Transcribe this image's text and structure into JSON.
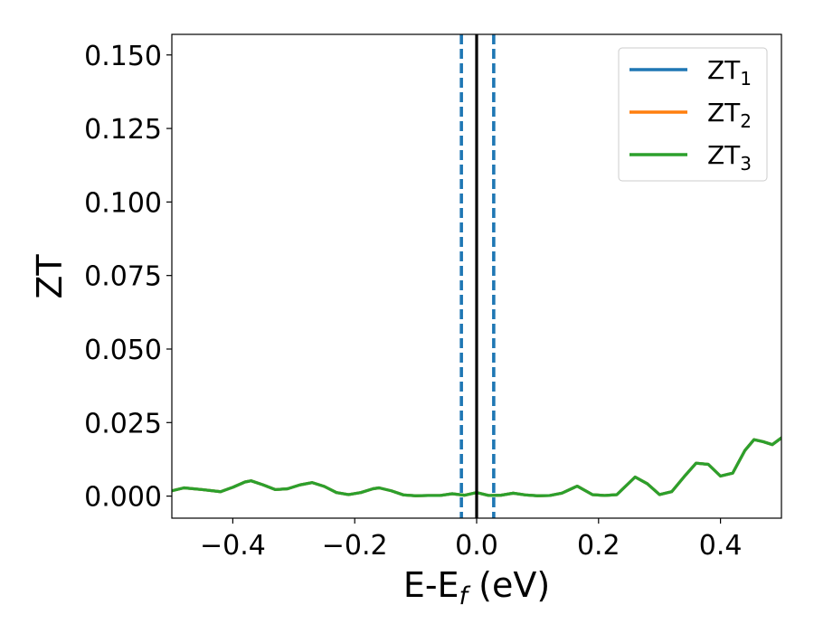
{
  "chart_data": {
    "type": "line",
    "title": "",
    "xlabel": "E-E",
    "xlabel_sub": "f",
    "xlabel_unit": " (eV)",
    "ylabel": "ZT",
    "xlim": [
      -0.5,
      0.5
    ],
    "ylim": [
      -0.0075,
      0.157
    ],
    "x_ticks": [
      -0.4,
      -0.2,
      0.0,
      0.2,
      0.4
    ],
    "x_tick_labels": [
      "−0.4",
      "−0.2",
      "0.0",
      "0.2",
      "0.4"
    ],
    "y_ticks": [
      0.0,
      0.025,
      0.05,
      0.075,
      0.1,
      0.125,
      0.15
    ],
    "y_tick_labels": [
      "0.000",
      "0.025",
      "0.050",
      "0.075",
      "0.100",
      "0.125",
      "0.150"
    ],
    "grid": false,
    "legend": {
      "position": "top-right"
    },
    "vertical_lines": [
      {
        "x": 0.0,
        "color": "#000000",
        "style": "solid"
      },
      {
        "x": -0.025,
        "color": "#1f77b4",
        "style": "dashed"
      },
      {
        "x": 0.028,
        "color": "#1f77b4",
        "style": "dashed"
      }
    ],
    "series": [
      {
        "name": "ZT",
        "name_sub": "1",
        "color": "#1f77b4",
        "x": [
          -0.5,
          -0.48,
          -0.45,
          -0.42,
          -0.4,
          -0.38,
          -0.37,
          -0.35,
          -0.33,
          -0.31,
          -0.29,
          -0.27,
          -0.25,
          -0.23,
          -0.21,
          -0.19,
          -0.17,
          -0.16,
          -0.14,
          -0.12,
          -0.1,
          -0.08,
          -0.06,
          -0.04,
          -0.02,
          0.0,
          0.02,
          0.04,
          0.06,
          0.08,
          0.1,
          0.12,
          0.14,
          0.165,
          0.19,
          0.21,
          0.23,
          0.25,
          0.26,
          0.28,
          0.3,
          0.32,
          0.34,
          0.36,
          0.38,
          0.4,
          0.42,
          0.44,
          0.455,
          0.47,
          0.485,
          0.5
        ],
        "y": [
          0.0018,
          0.0028,
          0.0022,
          0.0015,
          0.003,
          0.0048,
          0.0052,
          0.0038,
          0.0022,
          0.0025,
          0.0038,
          0.0046,
          0.0033,
          0.0012,
          0.0005,
          0.0012,
          0.0025,
          0.0028,
          0.0018,
          0.0004,
          0.0001,
          0.0002,
          0.0002,
          0.0008,
          0.0003,
          0.0012,
          0.0002,
          0.0003,
          0.001,
          0.0004,
          0.0001,
          0.0002,
          0.001,
          0.0034,
          0.0005,
          0.0002,
          0.0005,
          0.0045,
          0.0065,
          0.0042,
          0.0005,
          0.0015,
          0.0065,
          0.0112,
          0.0108,
          0.0068,
          0.0078,
          0.0155,
          0.0192,
          0.0185,
          0.0175,
          0.0198
        ]
      },
      {
        "name": "ZT",
        "name_sub": "2",
        "color": "#ff7f0e",
        "x": [
          -0.5,
          -0.48,
          -0.45,
          -0.42,
          -0.4,
          -0.38,
          -0.37,
          -0.35,
          -0.33,
          -0.31,
          -0.29,
          -0.27,
          -0.25,
          -0.23,
          -0.21,
          -0.19,
          -0.17,
          -0.16,
          -0.14,
          -0.12,
          -0.1,
          -0.08,
          -0.06,
          -0.04,
          -0.02,
          0.0,
          0.02,
          0.04,
          0.06,
          0.08,
          0.1,
          0.12,
          0.14,
          0.165,
          0.19,
          0.21,
          0.23,
          0.25,
          0.26,
          0.28,
          0.3,
          0.32,
          0.34,
          0.36,
          0.38,
          0.4,
          0.42,
          0.44,
          0.455,
          0.47,
          0.485,
          0.5
        ],
        "y": [
          0.0018,
          0.0028,
          0.0022,
          0.0015,
          0.003,
          0.0048,
          0.0052,
          0.0038,
          0.0022,
          0.0025,
          0.0038,
          0.0046,
          0.0033,
          0.0012,
          0.0005,
          0.0012,
          0.0025,
          0.0028,
          0.0018,
          0.0004,
          0.0001,
          0.0002,
          0.0002,
          0.0008,
          0.0003,
          0.0012,
          0.0002,
          0.0003,
          0.001,
          0.0004,
          0.0001,
          0.0002,
          0.001,
          0.0034,
          0.0005,
          0.0002,
          0.0005,
          0.0045,
          0.0065,
          0.0042,
          0.0005,
          0.0015,
          0.0065,
          0.0112,
          0.0108,
          0.0068,
          0.0078,
          0.0155,
          0.0192,
          0.0185,
          0.0175,
          0.0198
        ]
      },
      {
        "name": "ZT",
        "name_sub": "3",
        "color": "#2ca02c",
        "x": [
          -0.5,
          -0.48,
          -0.45,
          -0.42,
          -0.4,
          -0.38,
          -0.37,
          -0.35,
          -0.33,
          -0.31,
          -0.29,
          -0.27,
          -0.25,
          -0.23,
          -0.21,
          -0.19,
          -0.17,
          -0.16,
          -0.14,
          -0.12,
          -0.1,
          -0.08,
          -0.06,
          -0.04,
          -0.02,
          0.0,
          0.02,
          0.04,
          0.06,
          0.08,
          0.1,
          0.12,
          0.14,
          0.165,
          0.19,
          0.21,
          0.23,
          0.25,
          0.26,
          0.28,
          0.3,
          0.32,
          0.34,
          0.36,
          0.38,
          0.4,
          0.42,
          0.44,
          0.455,
          0.47,
          0.485,
          0.5
        ],
        "y": [
          0.0018,
          0.0028,
          0.0022,
          0.0015,
          0.003,
          0.0048,
          0.0052,
          0.0038,
          0.0022,
          0.0025,
          0.0038,
          0.0046,
          0.0033,
          0.0012,
          0.0005,
          0.0012,
          0.0025,
          0.0028,
          0.0018,
          0.0004,
          0.0001,
          0.0002,
          0.0002,
          0.0008,
          0.0003,
          0.0012,
          0.0002,
          0.0003,
          0.001,
          0.0004,
          0.0001,
          0.0002,
          0.001,
          0.0034,
          0.0005,
          0.0002,
          0.0005,
          0.0045,
          0.0065,
          0.0042,
          0.0005,
          0.0015,
          0.0065,
          0.0112,
          0.0108,
          0.0068,
          0.0078,
          0.0155,
          0.0192,
          0.0185,
          0.0175,
          0.0198
        ]
      }
    ]
  }
}
